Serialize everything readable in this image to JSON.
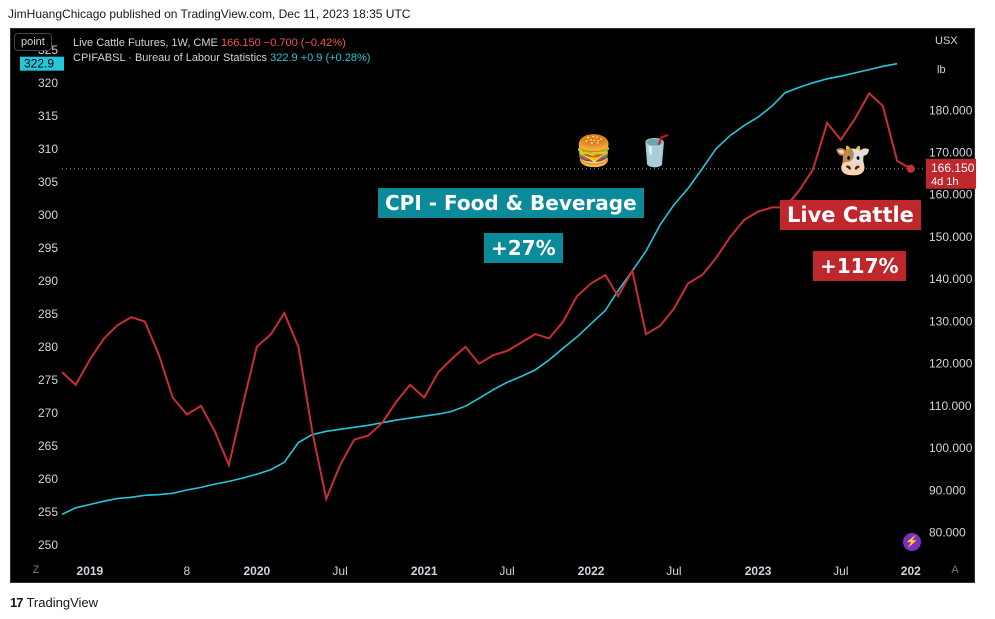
{
  "header": {
    "published": "JimHuangChicago published on TradingView.com, Dec 11, 2023 18:35 UTC"
  },
  "footer": {
    "brand": "TradingView"
  },
  "toolbar": {
    "left_scale_button": "point",
    "currency": "USX",
    "unit": "lb",
    "z_label": "Z",
    "a_label": "A"
  },
  "legend": {
    "series1_name": "Live Cattle Futures, 1W, CME",
    "series1_value": "166.150",
    "series1_change": "−0.700 (−0.42%)",
    "series2_name": "CPIFABSL · Bureau of Labour Statistics",
    "series2_value": "322.9",
    "series2_change": "+0.9 (+0.28%)"
  },
  "price_tags": {
    "left_current": "322.9",
    "right_current": "166.150",
    "right_countdown": "4d 1h"
  },
  "annotations": {
    "cpi_label": "CPI - Food & Beverage",
    "cpi_change": "+27%",
    "cattle_label": "Live Cattle",
    "cattle_change": "+117%",
    "burger_emoji": "🍔",
    "drink_emoji": "🥤",
    "cow_emoji": "🐮",
    "bolt_icon": "⚡"
  },
  "colors": {
    "cattle": "#c62f33",
    "cpi": "#26c6da",
    "cattle_tag": "#c0272d",
    "cpi_box": "#0b8a99",
    "background": "#000000"
  },
  "chart_data": {
    "type": "line",
    "title": "",
    "x_tick_labels": [
      "2019",
      "8",
      "2020",
      "Jul",
      "2021",
      "Jul",
      "2022",
      "Jul",
      "2023",
      "Jul",
      "202"
    ],
    "left_axis": {
      "ticks": [
        250,
        255,
        260,
        265,
        270,
        275,
        280,
        285,
        290,
        295,
        300,
        305,
        310,
        315,
        320,
        325
      ],
      "ylim": [
        248,
        328
      ]
    },
    "right_axis": {
      "ticks": [
        "80.000",
        "90.000",
        "100.000",
        "110.000",
        "120.000",
        "130.000",
        "140.000",
        "150.000",
        "160.000",
        "170.000",
        "180.000"
      ],
      "ylim": [
        74,
        199
      ]
    },
    "series": [
      {
        "name": "CPIFABSL · Bureau of Labour Statistics",
        "axis": "left",
        "x": [
          "2018-11",
          "2018-12",
          "2019-01",
          "2019-02",
          "2019-03",
          "2019-04",
          "2019-05",
          "2019-06",
          "2019-07",
          "2019-08",
          "2019-09",
          "2019-10",
          "2019-11",
          "2019-12",
          "2020-01",
          "2020-02",
          "2020-03",
          "2020-04",
          "2020-05",
          "2020-06",
          "2020-07",
          "2020-08",
          "2020-09",
          "2020-10",
          "2020-11",
          "2020-12",
          "2021-01",
          "2021-02",
          "2021-03",
          "2021-04",
          "2021-05",
          "2021-06",
          "2021-07",
          "2021-08",
          "2021-09",
          "2021-10",
          "2021-11",
          "2021-12",
          "2022-01",
          "2022-02",
          "2022-03",
          "2022-04",
          "2022-05",
          "2022-06",
          "2022-07",
          "2022-08",
          "2022-09",
          "2022-10",
          "2022-11",
          "2022-12",
          "2023-01",
          "2023-02",
          "2023-03",
          "2023-04",
          "2023-05",
          "2023-06",
          "2023-07",
          "2023-08",
          "2023-09",
          "2023-10",
          "2023-11"
        ],
        "values": [
          254.6,
          255.6,
          256.1,
          256.6,
          257.0,
          257.2,
          257.5,
          257.6,
          257.8,
          258.3,
          258.7,
          259.2,
          259.6,
          260.1,
          260.7,
          261.4,
          262.5,
          265.5,
          266.7,
          267.2,
          267.5,
          267.8,
          268.1,
          268.5,
          268.9,
          269.2,
          269.5,
          269.8,
          270.2,
          271.0,
          272.2,
          273.5,
          274.6,
          275.5,
          276.5,
          278.0,
          279.8,
          281.5,
          283.5,
          285.5,
          288.5,
          291.5,
          294.5,
          298.5,
          301.5,
          304.0,
          307.0,
          310.0,
          312.0,
          313.5,
          314.8,
          316.5,
          318.5,
          319.3,
          320.0,
          320.6,
          321.0,
          321.5,
          322.0,
          322.5,
          322.9
        ]
      },
      {
        "name": "Live Cattle Futures, 1W, CME",
        "axis": "right",
        "x": [
          "2018-11",
          "2018-12",
          "2019-01",
          "2019-02",
          "2019-03",
          "2019-04",
          "2019-05",
          "2019-06",
          "2019-07",
          "2019-08",
          "2019-09",
          "2019-10",
          "2019-11",
          "2019-12",
          "2020-01",
          "2020-02",
          "2020-03",
          "2020-04",
          "2020-05",
          "2020-06",
          "2020-07",
          "2020-08",
          "2020-09",
          "2020-10",
          "2020-11",
          "2020-12",
          "2021-01",
          "2021-02",
          "2021-03",
          "2021-04",
          "2021-05",
          "2021-06",
          "2021-07",
          "2021-08",
          "2021-09",
          "2021-10",
          "2021-11",
          "2021-12",
          "2022-01",
          "2022-02",
          "2022-03",
          "2022-04",
          "2022-05",
          "2022-06",
          "2022-07",
          "2022-08",
          "2022-09",
          "2022-10",
          "2022-11",
          "2022-12",
          "2023-01",
          "2023-02",
          "2023-03",
          "2023-04",
          "2023-05",
          "2023-06",
          "2023-07",
          "2023-08",
          "2023-09",
          "2023-10",
          "2023-11",
          "2023-12"
        ],
        "values": [
          118,
          115,
          121,
          126,
          129,
          131,
          130,
          122,
          112,
          108,
          110,
          104,
          96,
          110,
          124,
          127,
          132,
          124,
          104,
          88,
          96,
          102,
          103,
          106,
          111,
          115,
          112,
          118,
          121,
          124,
          120,
          122,
          123,
          125,
          127,
          126,
          130,
          136,
          139,
          141,
          136,
          142,
          127,
          129,
          133,
          139,
          141,
          145,
          150,
          154,
          156,
          157,
          157,
          161,
          166,
          177,
          173,
          178,
          184,
          181,
          168,
          166.15
        ]
      }
    ]
  }
}
